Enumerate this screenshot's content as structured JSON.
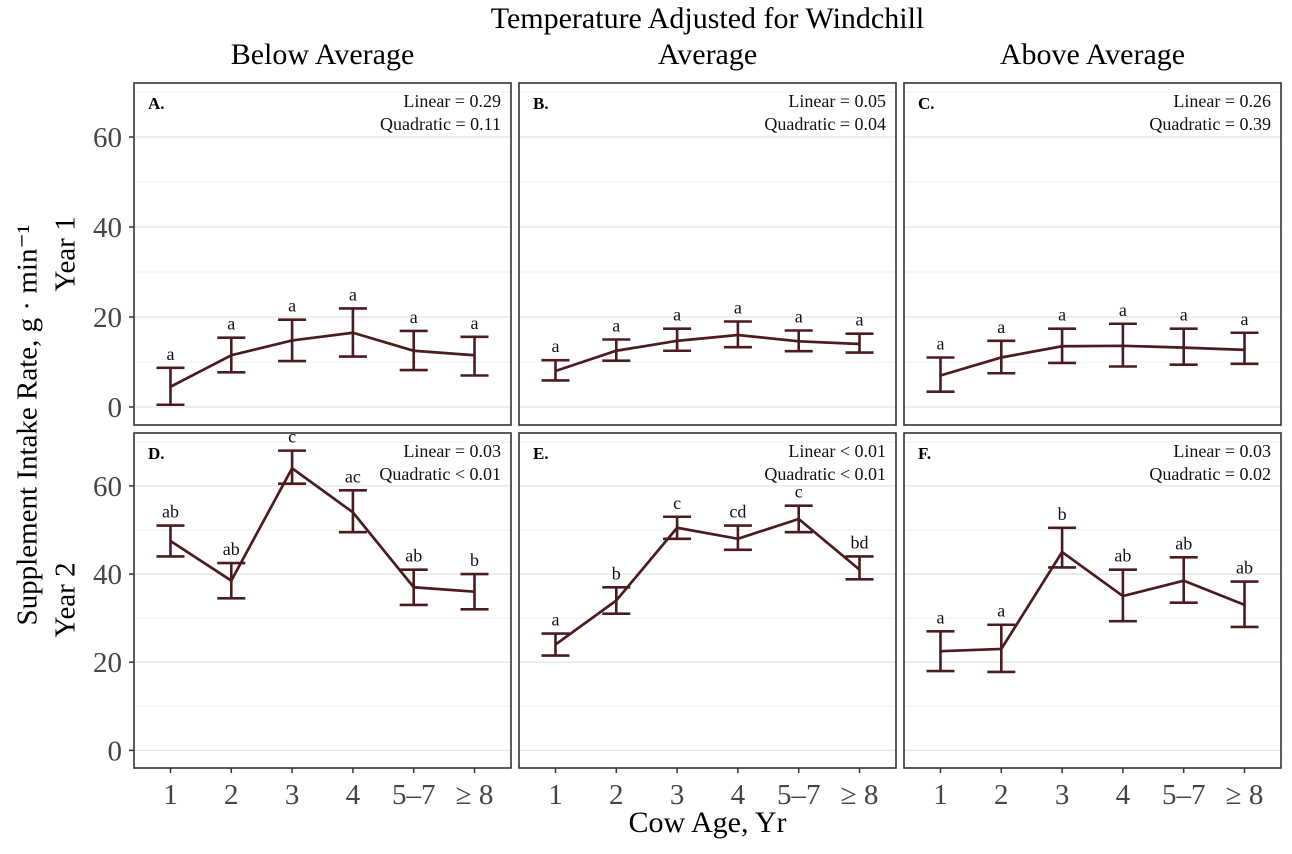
{
  "title": "Temperature Adjusted for Windchill",
  "column_headers": [
    "Below Average",
    "Average",
    "Above Average"
  ],
  "row_labels": [
    "Year 1",
    "Year 2"
  ],
  "ylabel": "Supplement Intake Rate, g · min⁻¹",
  "xlabel": "Cow Age, Yr",
  "colors": {
    "series": "#4a1c1f",
    "panel_border": "#333333",
    "grid_major": "#e4e4e4",
    "grid_minor": "#efefef",
    "tick_label": "#454545",
    "annotation": "#111111"
  },
  "chart_data": [
    {
      "type": "line",
      "panel_label": "A.",
      "row": 0,
      "col": 0,
      "facet_col": "Below Average",
      "facet_row": "Year 1",
      "stats": [
        "Linear = 0.29",
        "Quadratic = 0.11"
      ],
      "categories": [
        "1",
        "2",
        "3",
        "4",
        "5–7",
        "≥ 8"
      ],
      "means": [
        4.5,
        11.5,
        14.8,
        16.5,
        12.5,
        11.5
      ],
      "err_low": [
        0.5,
        7.7,
        10.2,
        11.2,
        8.2,
        7.0
      ],
      "err_high": [
        8.7,
        15.4,
        19.4,
        21.9,
        16.9,
        15.6
      ],
      "letters": [
        "a",
        "a",
        "a",
        "a",
        "a",
        "a"
      ],
      "ylim": [
        -4,
        72
      ],
      "yticks": [
        0,
        20,
        40,
        60
      ],
      "grid_minor": [
        10,
        30,
        50,
        70
      ]
    },
    {
      "type": "line",
      "panel_label": "B.",
      "row": 0,
      "col": 1,
      "facet_col": "Average",
      "facet_row": "Year 1",
      "stats": [
        "Linear = 0.05",
        "Quadratic = 0.04"
      ],
      "categories": [
        "1",
        "2",
        "3",
        "4",
        "5–7",
        "≥ 8"
      ],
      "means": [
        8.0,
        12.5,
        14.7,
        16.0,
        14.6,
        14.0
      ],
      "err_low": [
        5.9,
        10.3,
        12.5,
        13.3,
        12.4,
        12.1
      ],
      "err_high": [
        10.4,
        15.0,
        17.4,
        19.0,
        17.0,
        16.3
      ],
      "letters": [
        "a",
        "a",
        "a",
        "a",
        "a",
        "a"
      ],
      "ylim": [
        -4,
        72
      ],
      "yticks": [
        0,
        20,
        40,
        60
      ],
      "grid_minor": [
        10,
        30,
        50,
        70
      ]
    },
    {
      "type": "line",
      "panel_label": "C.",
      "row": 0,
      "col": 2,
      "facet_col": "Above Average",
      "facet_row": "Year 1",
      "stats": [
        "Linear =  0.26",
        "Quadratic = 0.39"
      ],
      "categories": [
        "1",
        "2",
        "3",
        "4",
        "5–7",
        "≥ 8"
      ],
      "means": [
        7.0,
        11.0,
        13.5,
        13.6,
        13.2,
        12.7
      ],
      "err_low": [
        3.4,
        7.5,
        9.8,
        9.0,
        9.4,
        9.6
      ],
      "err_high": [
        11.0,
        14.7,
        17.4,
        18.5,
        17.4,
        16.5
      ],
      "letters": [
        "a",
        "a",
        "a",
        "a",
        "a",
        "a"
      ],
      "ylim": [
        -4,
        72
      ],
      "yticks": [
        0,
        20,
        40,
        60
      ],
      "grid_minor": [
        10,
        30,
        50,
        70
      ]
    },
    {
      "type": "line",
      "panel_label": "D.",
      "row": 1,
      "col": 0,
      "facet_col": "Below Average",
      "facet_row": "Year 2",
      "stats": [
        "Linear = 0.03",
        "Quadratic < 0.01"
      ],
      "categories": [
        "1",
        "2",
        "3",
        "4",
        "5–7",
        "≥ 8"
      ],
      "means": [
        47.5,
        38.5,
        64.0,
        54.0,
        37.0,
        36.0
      ],
      "err_low": [
        44.0,
        34.5,
        60.5,
        49.5,
        33.0,
        32.0
      ],
      "err_high": [
        51.0,
        42.5,
        68.0,
        59.0,
        41.0,
        40.0
      ],
      "letters": [
        "ab",
        "ab",
        "c",
        "ac",
        "ab",
        "b"
      ],
      "ylim": [
        -4,
        72
      ],
      "yticks": [
        0,
        20,
        40,
        60
      ],
      "grid_minor": [
        10,
        30,
        50,
        70
      ]
    },
    {
      "type": "line",
      "panel_label": "E.",
      "row": 1,
      "col": 1,
      "facet_col": "Average",
      "facet_row": "Year 2",
      "stats": [
        "Linear < 0.01",
        "Quadratic < 0.01"
      ],
      "categories": [
        "1",
        "2",
        "3",
        "4",
        "5–7",
        "≥ 8"
      ],
      "means": [
        24.0,
        34.0,
        50.5,
        48.0,
        52.5,
        41.0
      ],
      "err_low": [
        21.5,
        31.0,
        48.0,
        45.5,
        49.5,
        38.8
      ],
      "err_high": [
        26.5,
        37.0,
        53.0,
        51.0,
        55.5,
        44.0
      ],
      "letters": [
        "a",
        "b",
        "c",
        "cd",
        "c",
        "bd"
      ],
      "ylim": [
        -4,
        72
      ],
      "yticks": [
        0,
        20,
        40,
        60
      ],
      "grid_minor": [
        10,
        30,
        50,
        70
      ]
    },
    {
      "type": "line",
      "panel_label": "F.",
      "row": 1,
      "col": 2,
      "facet_col": "Above Average",
      "facet_row": "Year 2",
      "stats": [
        "Linear = 0.03",
        "Quadratic = 0.02"
      ],
      "categories": [
        "1",
        "2",
        "3",
        "4",
        "5–7",
        "≥ 8"
      ],
      "means": [
        22.5,
        23.0,
        45.0,
        35.0,
        38.5,
        33.0
      ],
      "err_low": [
        18.0,
        17.8,
        41.5,
        29.3,
        33.5,
        28.0
      ],
      "err_high": [
        27.0,
        28.5,
        50.5,
        41.0,
        43.8,
        38.3
      ],
      "letters": [
        "a",
        "a",
        "b",
        "ab",
        "ab",
        "ab"
      ],
      "ylim": [
        -4,
        72
      ],
      "yticks": [
        0,
        20,
        40,
        60
      ],
      "grid_minor": [
        10,
        30,
        50,
        70
      ]
    }
  ]
}
